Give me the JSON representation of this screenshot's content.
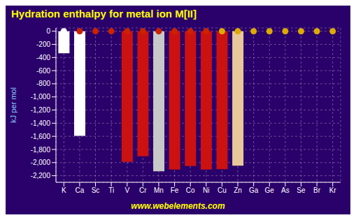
{
  "chart_data": {
    "type": "bar",
    "title": "Hydration enthalpy for metal ion M[II]",
    "y_label": "kJ per mol",
    "annotations": [
      "www.webelements.com"
    ],
    "categories": [
      "K",
      "Ca",
      "Sc",
      "Ti",
      "V",
      "Cr",
      "Mn",
      "Fe",
      "Co",
      "Ni",
      "Cu",
      "Zn",
      "Ga",
      "Ge",
      "As",
      "Se",
      "Br",
      "Kr"
    ],
    "series": [
      {
        "type": "bar",
        "values": [
          -336,
          -1592,
          0,
          0,
          -1990,
          -1904,
          -2133,
          -2106,
          -2054,
          -2106,
          -2100,
          -2047,
          0,
          0,
          0,
          0,
          0,
          0
        ],
        "colors": [
          "white",
          "white",
          null,
          null,
          "#cc1111",
          "#cc1111",
          "#c8c8c8",
          "#cc1111",
          "#cc1111",
          "#cc1111",
          "#cc1111",
          "#e8c89a",
          null,
          null,
          null,
          null,
          null,
          null
        ]
      },
      {
        "type": "scatter",
        "values": [
          0,
          0,
          0,
          0,
          0,
          0,
          0,
          0,
          0,
          0,
          0,
          0,
          0,
          0,
          0,
          0,
          0,
          0
        ],
        "colors": [
          "white",
          "#cc2200",
          "#cc2200",
          "#cc2200",
          "#cc2200",
          "#cc2200",
          "#cc2200",
          "#cc2200",
          "#cc2200",
          "#cc2200",
          "#ddaa00",
          "#ddaa00",
          "#ddaa00",
          "#ddaa00",
          "#ddaa00",
          "#ddaa00",
          "#ddaa00",
          "#ddaa00"
        ]
      }
    ],
    "ylim": [
      -2300,
      50
    ],
    "yticks": [
      0,
      -200,
      -400,
      -600,
      -800,
      {
        "value": -1000,
        "label": "-1,000"
      },
      {
        "value": -1200,
        "label": "-1,200"
      },
      {
        "value": -1400,
        "label": "-1,400"
      },
      {
        "value": -1600,
        "label": "-1,600"
      },
      {
        "value": -1800,
        "label": "-1,800"
      },
      {
        "value": -2000,
        "label": "-2,000"
      },
      {
        "value": -2200,
        "label": "-2,200"
      }
    ],
    "grid": true
  }
}
